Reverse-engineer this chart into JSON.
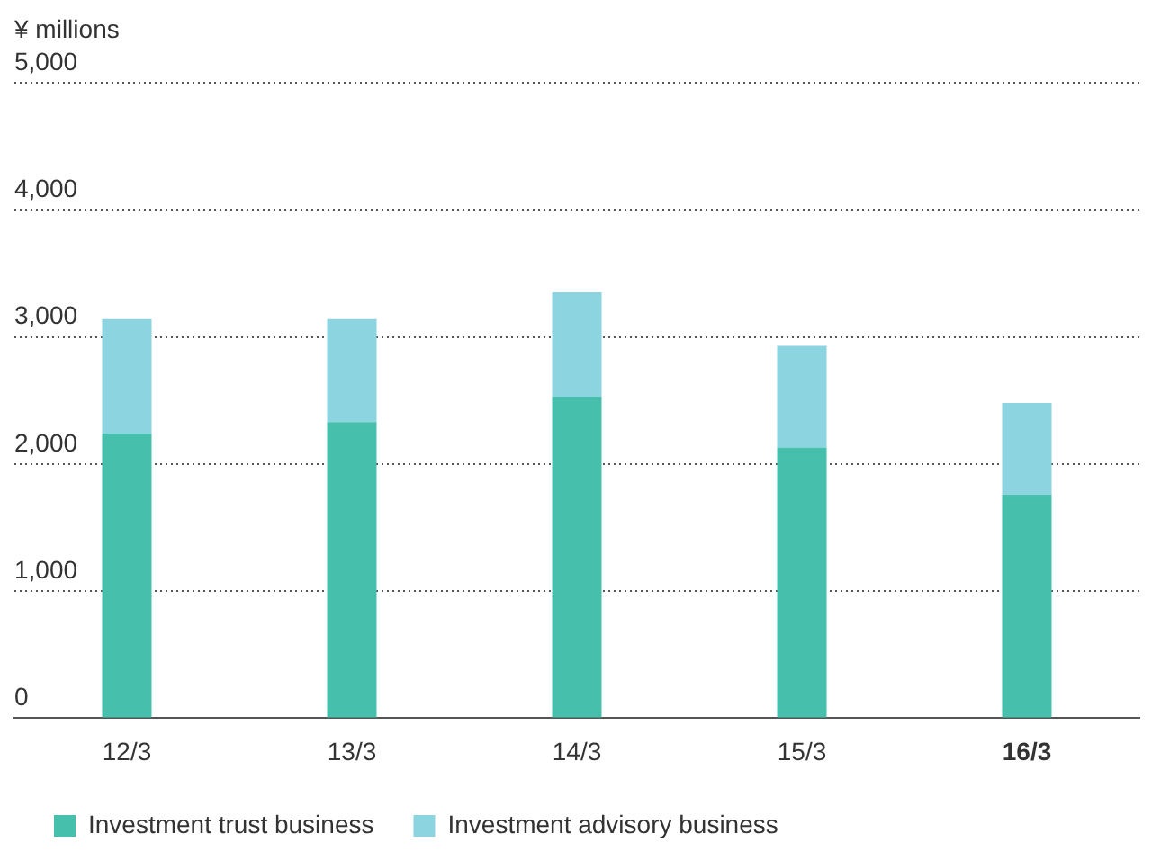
{
  "chart_data": {
    "type": "bar",
    "ylabel": "¥ millions",
    "categories": [
      "12/3",
      "13/3",
      "14/3",
      "15/3",
      "16/3"
    ],
    "series": [
      {
        "name": "Investment trust business",
        "color": "#46bfad",
        "values": [
          2240,
          2330,
          2530,
          2130,
          1760
        ]
      },
      {
        "name": "Investment advisory business",
        "color": "#8cd4e0",
        "values": [
          900,
          810,
          820,
          800,
          720
        ]
      }
    ],
    "stacked": true,
    "ylim": [
      0,
      5000
    ],
    "yticks": [
      0,
      {
        "value": 1000,
        "label": "1,000"
      },
      {
        "value": 2000,
        "label": "2,000"
      },
      {
        "value": 3000,
        "label": "3,000"
      },
      {
        "value": 4000,
        "label": "4,000"
      },
      {
        "value": 5000,
        "label": "5,000"
      }
    ],
    "grid": "y",
    "legend": "bottom left"
  }
}
